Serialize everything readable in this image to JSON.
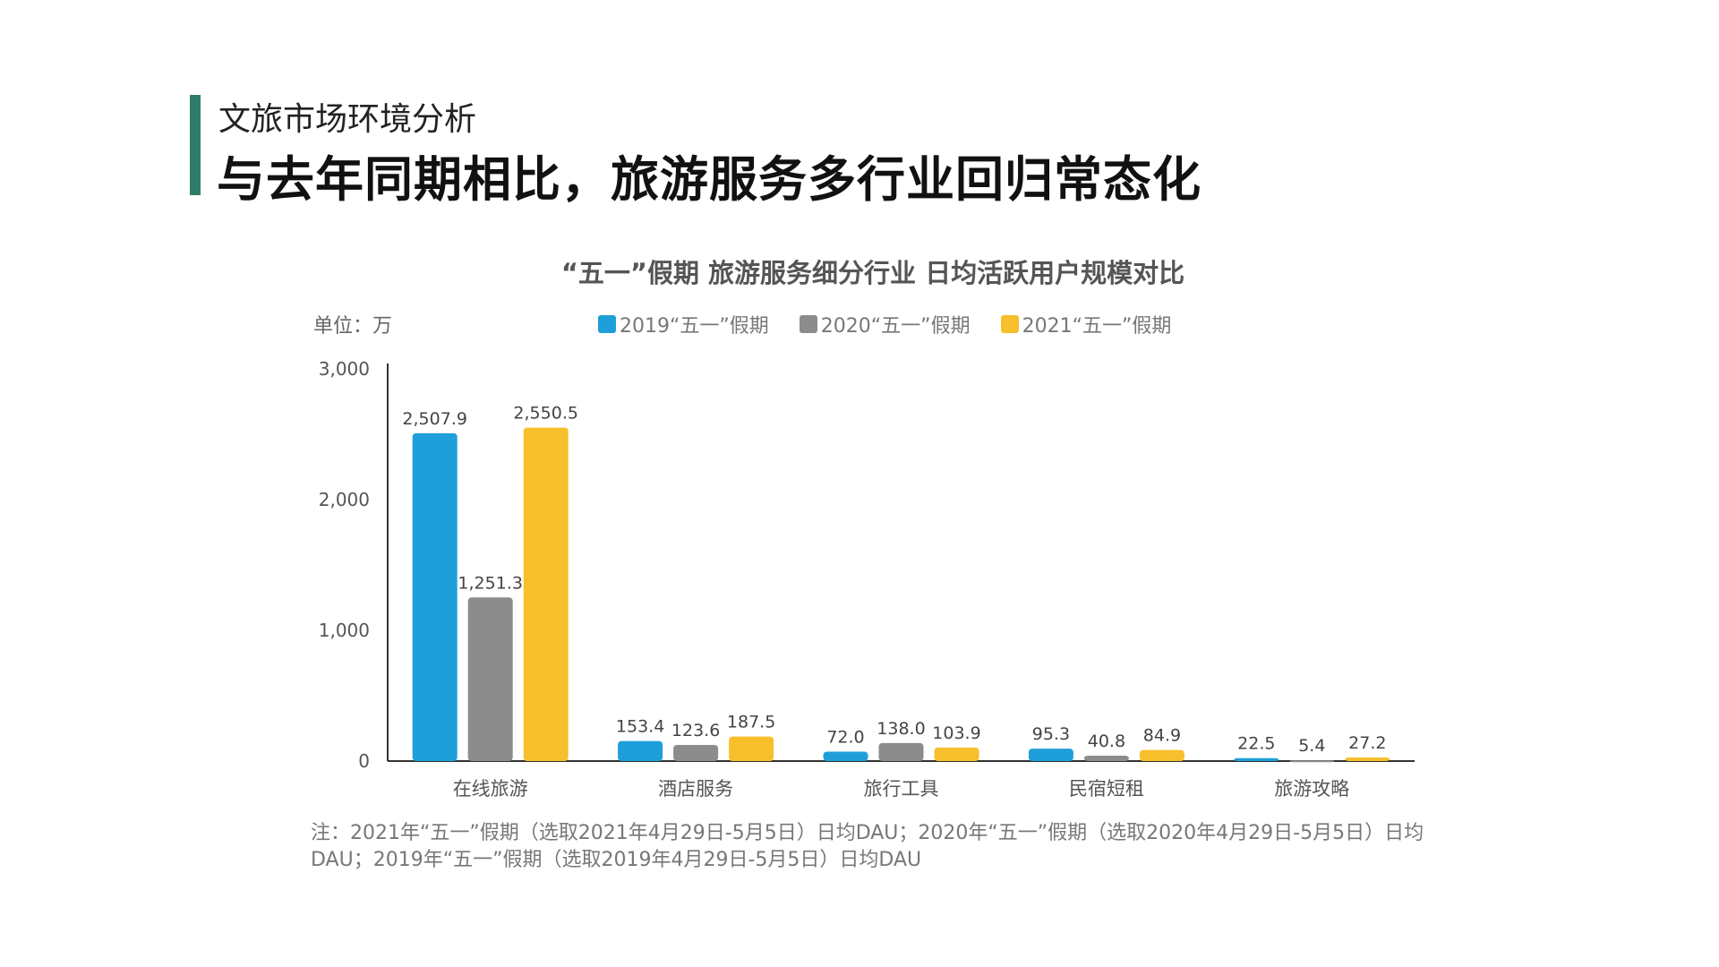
{
  "header": {
    "section_label": "文旅市场环境分析",
    "headline": "与去年同期相比，旅游服务多行业回归常态化"
  },
  "colors": {
    "accent": "#2e7d6b",
    "series": [
      "#1f9fd9",
      "#8c8c8c",
      "#f7bf2c"
    ]
  },
  "chart_data": {
    "type": "bar",
    "title": "“五一”假期 旅游服务细分行业 日均活跃用户规模对比",
    "unit_label": "单位：万",
    "categories": [
      "在线旅游",
      "酒店服务",
      "旅行工具",
      "民宿短租",
      "旅游攻略"
    ],
    "series": [
      {
        "name": "2019“五一”假期",
        "values": [
          2507.9,
          153.4,
          72.0,
          95.3,
          22.5
        ],
        "labels": [
          "2,507.9",
          "153.4",
          "72.0",
          "95.3",
          "22.5"
        ]
      },
      {
        "name": "2020“五一”假期",
        "values": [
          1251.3,
          123.6,
          138.0,
          40.8,
          5.4
        ],
        "labels": [
          "1,251.3",
          "123.6",
          "138.0",
          "40.8",
          "5.4"
        ]
      },
      {
        "name": "2021“五一”假期",
        "values": [
          2550.5,
          187.5,
          103.9,
          84.9,
          27.2
        ],
        "labels": [
          "2,550.5",
          "187.5",
          "103.9",
          "84.9",
          "27.2"
        ]
      }
    ],
    "ylim": [
      0,
      3000
    ],
    "yticks": [
      0,
      1000,
      2000,
      3000
    ],
    "ytick_labels": [
      "0",
      "1,000",
      "2,000",
      "3,000"
    ],
    "legend_position": "top",
    "grid": false,
    "note": "注：2021年“五一”假期（选取2021年4月29日-5月5日）日均DAU；2020年“五一”假期（选取2020年4月29日-5月5日）日均DAU；2019年“五一”假期（选取2019年4月29日-5月5日）日均DAU"
  }
}
